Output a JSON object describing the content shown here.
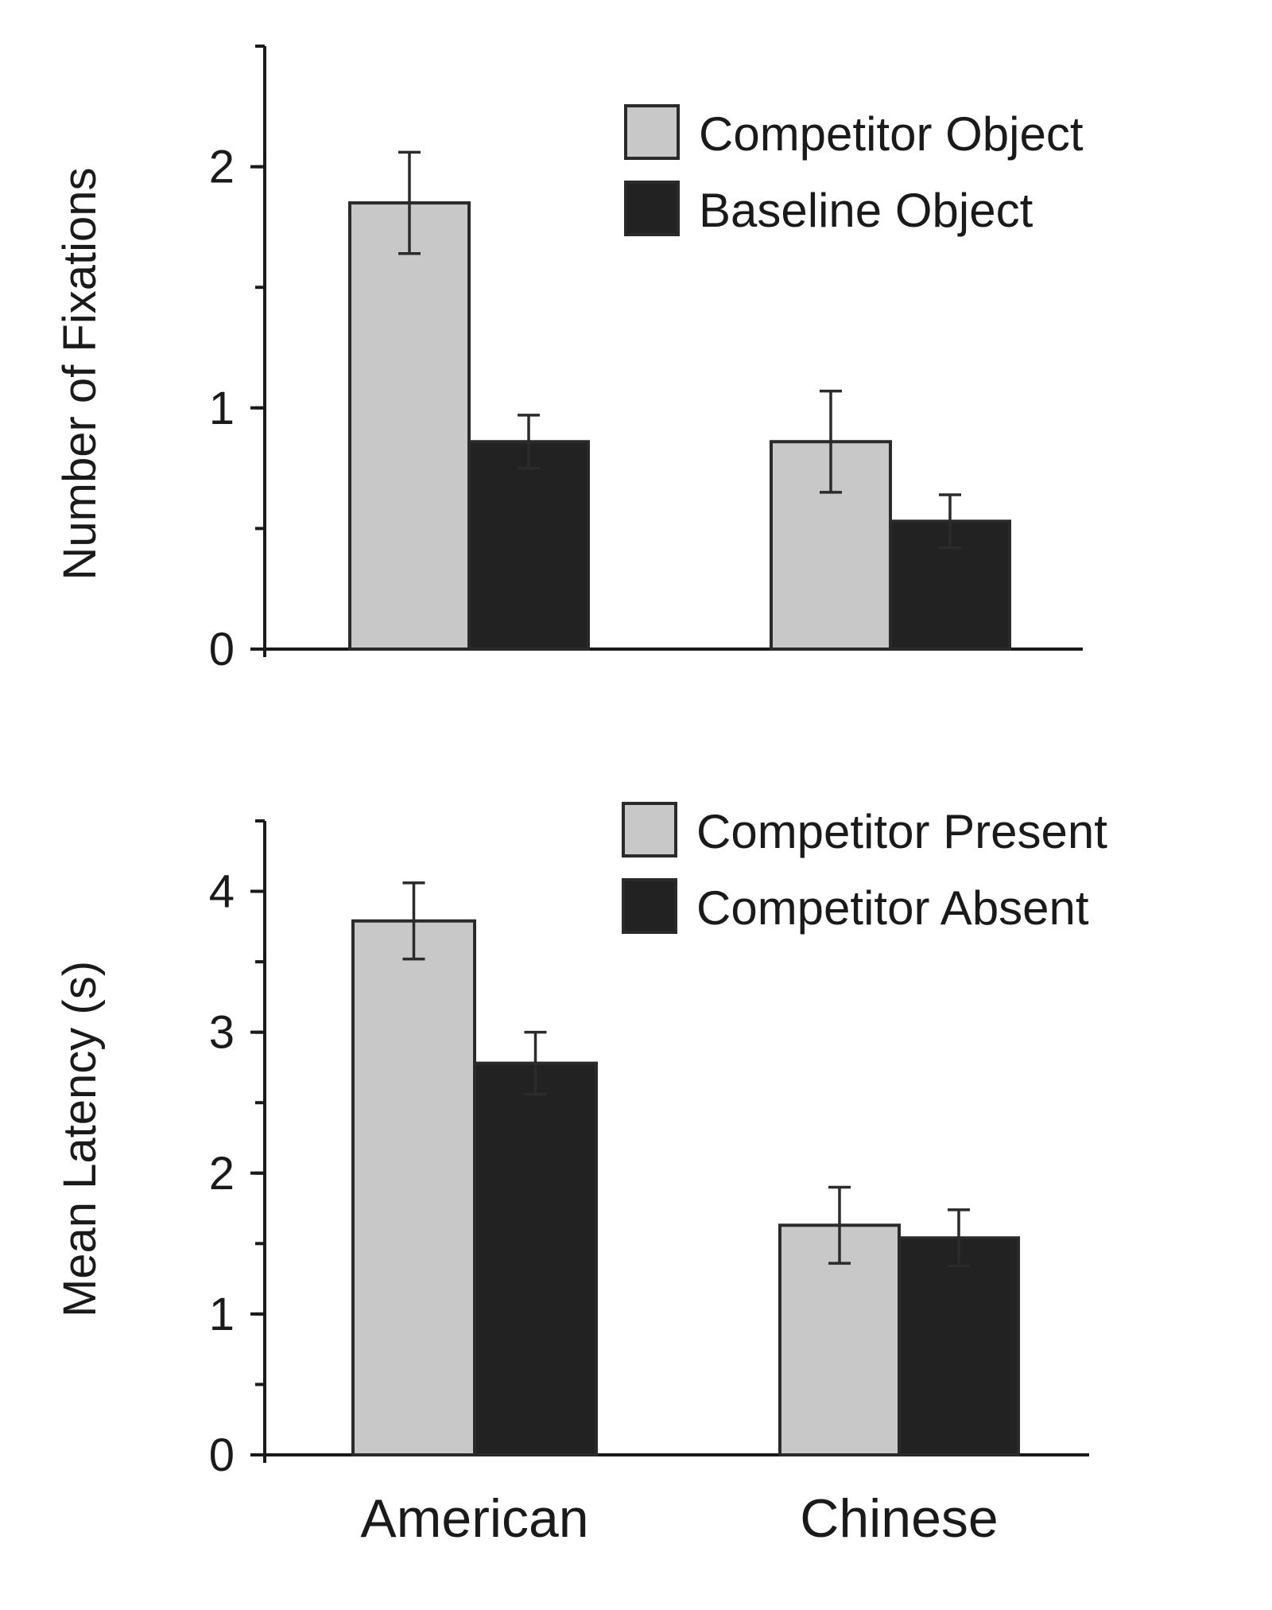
{
  "chart_data": [
    {
      "type": "bar",
      "categories": [
        "American",
        "Chinese"
      ],
      "ylabel": "Number of Fixations",
      "ylim": [
        0,
        2.5
      ],
      "yticks": [
        0,
        1,
        2
      ],
      "minor_step": 0.5,
      "legend_position": "top-right",
      "series": [
        {
          "name": "Competitor Object",
          "color": "#c8c8c8",
          "values": [
            1.85,
            0.86
          ],
          "errors": [
            0.21,
            0.21
          ]
        },
        {
          "name": "Baseline Object",
          "color": "#222222",
          "values": [
            0.86,
            0.53
          ],
          "errors": [
            0.11,
            0.11
          ]
        }
      ]
    },
    {
      "type": "bar",
      "categories": [
        "American",
        "Chinese"
      ],
      "ylabel": "Mean Latency (s)",
      "ylim": [
        0,
        4.5
      ],
      "yticks": [
        0,
        1,
        2,
        3,
        4
      ],
      "minor_step": 0.5,
      "legend_position": "top-right",
      "series": [
        {
          "name": "Competitor Present",
          "color": "#c8c8c8",
          "values": [
            3.79,
            1.63
          ],
          "errors": [
            0.27,
            0.27
          ]
        },
        {
          "name": "Competitor Absent",
          "color": "#222222",
          "values": [
            2.78,
            1.54
          ],
          "errors": [
            0.22,
            0.2
          ]
        }
      ]
    }
  ]
}
